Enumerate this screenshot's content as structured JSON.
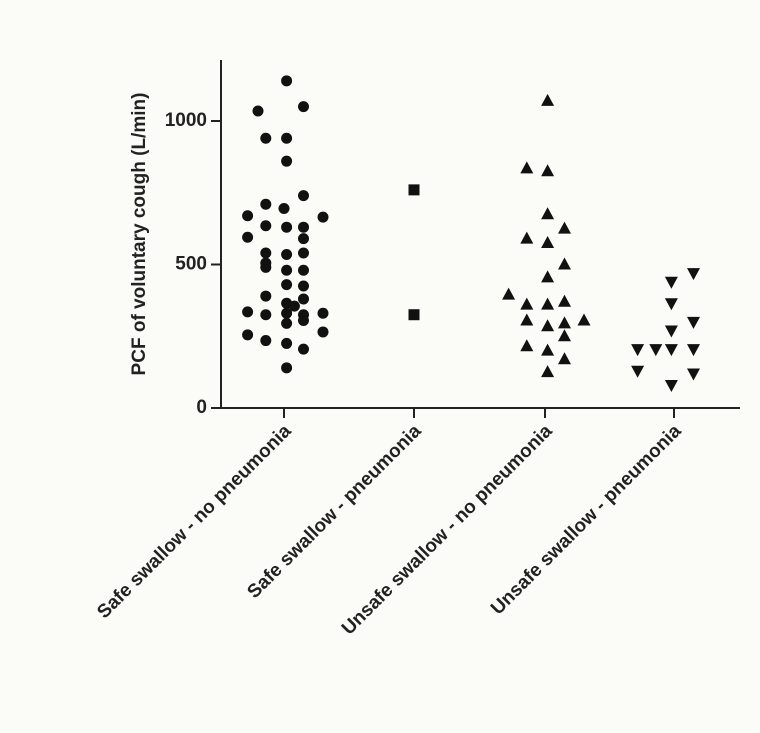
{
  "chart_data": {
    "type": "scatter",
    "title": "",
    "xlabel": "",
    "ylabel": "PCF of voluntary cough (L/min)",
    "ylim": [
      0,
      1200
    ],
    "yticks": [
      0,
      500,
      1000
    ],
    "grid": false,
    "categories": [
      "Safe swallow - no pneumonia",
      "Safe swallow - pneumonia",
      "Unsafe swallow - no pneumonia",
      "Unsafe swallow - pneumonia"
    ],
    "series": [
      {
        "category": "Safe swallow - no pneumonia",
        "marker": "circle",
        "points": [
          {
            "offset": 0.02,
            "y": 1140
          },
          {
            "offset": -0.2,
            "y": 1035
          },
          {
            "offset": 0.15,
            "y": 1050
          },
          {
            "offset": -0.14,
            "y": 940
          },
          {
            "offset": 0.02,
            "y": 940
          },
          {
            "offset": 0.02,
            "y": 860
          },
          {
            "offset": 0.15,
            "y": 740
          },
          {
            "offset": -0.14,
            "y": 710
          },
          {
            "offset": 0.0,
            "y": 695
          },
          {
            "offset": -0.28,
            "y": 670
          },
          {
            "offset": 0.3,
            "y": 665
          },
          {
            "offset": -0.14,
            "y": 635
          },
          {
            "offset": 0.02,
            "y": 630
          },
          {
            "offset": 0.15,
            "y": 630
          },
          {
            "offset": -0.28,
            "y": 595
          },
          {
            "offset": 0.15,
            "y": 590
          },
          {
            "offset": -0.14,
            "y": 540
          },
          {
            "offset": 0.02,
            "y": 535
          },
          {
            "offset": 0.15,
            "y": 540
          },
          {
            "offset": -0.14,
            "y": 505
          },
          {
            "offset": -0.14,
            "y": 490
          },
          {
            "offset": 0.02,
            "y": 480
          },
          {
            "offset": 0.15,
            "y": 480
          },
          {
            "offset": 0.02,
            "y": 430
          },
          {
            "offset": 0.15,
            "y": 425
          },
          {
            "offset": -0.14,
            "y": 390
          },
          {
            "offset": 0.02,
            "y": 365
          },
          {
            "offset": 0.08,
            "y": 355
          },
          {
            "offset": 0.15,
            "y": 380
          },
          {
            "offset": -0.28,
            "y": 335
          },
          {
            "offset": -0.14,
            "y": 325
          },
          {
            "offset": 0.02,
            "y": 330
          },
          {
            "offset": 0.15,
            "y": 325
          },
          {
            "offset": 0.3,
            "y": 330
          },
          {
            "offset": 0.02,
            "y": 295
          },
          {
            "offset": 0.15,
            "y": 305
          },
          {
            "offset": -0.28,
            "y": 255
          },
          {
            "offset": 0.3,
            "y": 265
          },
          {
            "offset": -0.14,
            "y": 235
          },
          {
            "offset": 0.02,
            "y": 225
          },
          {
            "offset": 0.15,
            "y": 205
          },
          {
            "offset": 0.02,
            "y": 140
          }
        ]
      },
      {
        "category": "Safe swallow - pneumonia",
        "marker": "square",
        "points": [
          {
            "offset": 0.0,
            "y": 760
          },
          {
            "offset": 0.0,
            "y": 325
          }
        ]
      },
      {
        "category": "Unsafe swallow - no pneumonia",
        "marker": "triangle-up",
        "points": [
          {
            "offset": 0.02,
            "y": 1070
          },
          {
            "offset": -0.14,
            "y": 835
          },
          {
            "offset": 0.02,
            "y": 825
          },
          {
            "offset": 0.02,
            "y": 675
          },
          {
            "offset": 0.15,
            "y": 625
          },
          {
            "offset": -0.14,
            "y": 590
          },
          {
            "offset": 0.02,
            "y": 575
          },
          {
            "offset": 0.15,
            "y": 500
          },
          {
            "offset": 0.02,
            "y": 455
          },
          {
            "offset": -0.28,
            "y": 395
          },
          {
            "offset": -0.14,
            "y": 360
          },
          {
            "offset": 0.02,
            "y": 360
          },
          {
            "offset": 0.15,
            "y": 370
          },
          {
            "offset": -0.14,
            "y": 305
          },
          {
            "offset": 0.02,
            "y": 285
          },
          {
            "offset": 0.15,
            "y": 295
          },
          {
            "offset": 0.3,
            "y": 305
          },
          {
            "offset": 0.15,
            "y": 250
          },
          {
            "offset": -0.14,
            "y": 215
          },
          {
            "offset": 0.02,
            "y": 200
          },
          {
            "offset": 0.15,
            "y": 170
          },
          {
            "offset": 0.02,
            "y": 125
          }
        ]
      },
      {
        "category": "Unsafe swallow - pneumonia",
        "marker": "triangle-down",
        "points": [
          {
            "offset": 0.15,
            "y": 470
          },
          {
            "offset": -0.02,
            "y": 440
          },
          {
            "offset": -0.02,
            "y": 365
          },
          {
            "offset": 0.15,
            "y": 300
          },
          {
            "offset": -0.02,
            "y": 270
          },
          {
            "offset": -0.28,
            "y": 205
          },
          {
            "offset": -0.14,
            "y": 205
          },
          {
            "offset": -0.02,
            "y": 205
          },
          {
            "offset": 0.15,
            "y": 205
          },
          {
            "offset": -0.28,
            "y": 130
          },
          {
            "offset": 0.15,
            "y": 120
          },
          {
            "offset": -0.02,
            "y": 80
          }
        ]
      }
    ]
  }
}
